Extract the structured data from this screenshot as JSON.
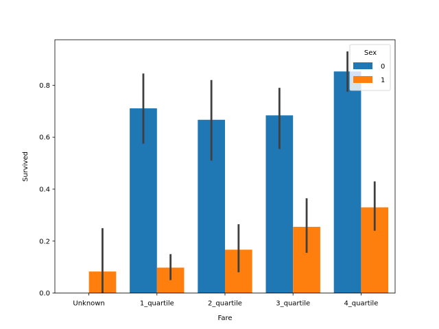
{
  "chart_data": {
    "type": "bar",
    "xlabel": "Fare",
    "ylabel": "Survived",
    "categories": [
      "Unknown",
      "1_quartile",
      "2_quartile",
      "3_quartile",
      "4_quartile"
    ],
    "ylim": [
      0,
      0.975
    ],
    "yticks": [
      0.0,
      0.2,
      0.4,
      0.6,
      0.8
    ],
    "ytick_labels": [
      "0.0",
      "0.2",
      "0.4",
      "0.6",
      "0.8"
    ],
    "grid": false,
    "legend": {
      "title": "Sex",
      "position": "top-right"
    },
    "series": [
      {
        "name": "0",
        "color": "#1f77b4",
        "values": [
          null,
          0.711,
          0.667,
          0.684,
          0.853
        ],
        "ci": [
          null,
          [
            0.575,
            0.845
          ],
          [
            0.51,
            0.82
          ],
          [
            0.555,
            0.79
          ],
          [
            0.775,
            0.93
          ]
        ]
      },
      {
        "name": "1",
        "color": "#ff7f0e",
        "values": [
          0.083,
          0.098,
          0.167,
          0.255,
          0.33
        ],
        "ci": [
          [
            0.0,
            0.25
          ],
          [
            0.05,
            0.15
          ],
          [
            0.08,
            0.265
          ],
          [
            0.155,
            0.365
          ],
          [
            0.24,
            0.43
          ]
        ]
      }
    ],
    "errorbar_color": "#3f3f3f"
  }
}
